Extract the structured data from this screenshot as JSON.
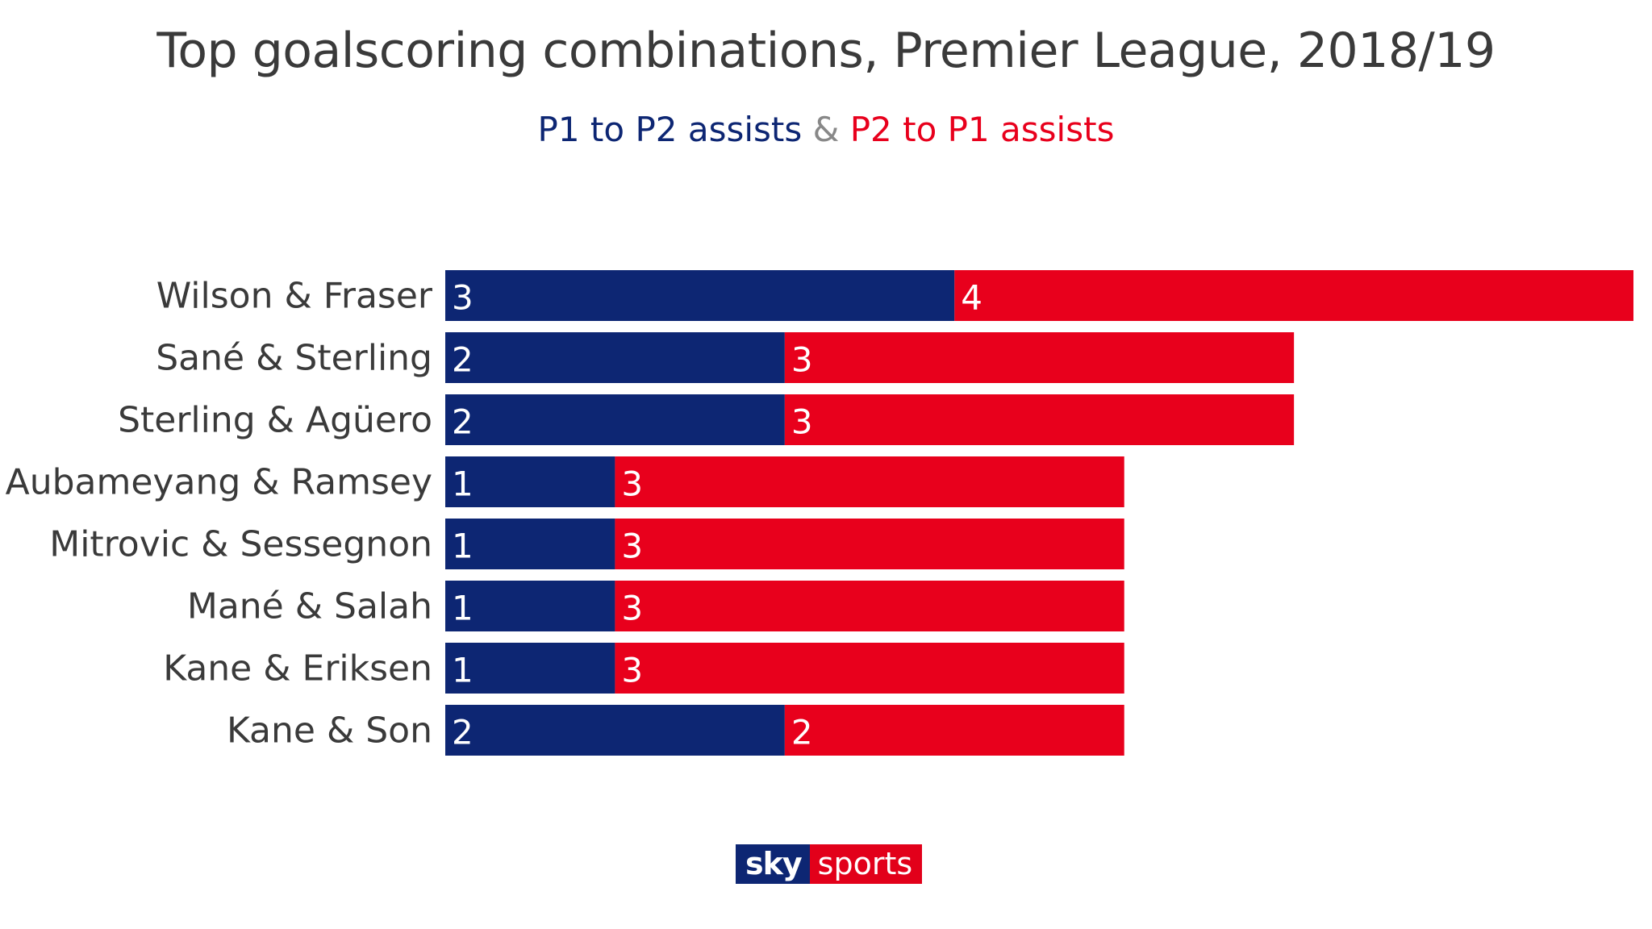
{
  "colors": {
    "p1_to_p2": "#0d2673",
    "p2_to_p1": "#e8001c",
    "text": "#3a3a3a",
    "separator": "#888888"
  },
  "subtitle": {
    "part1": "P1 to P2 assists",
    "separator": "&",
    "part2": "P2 to P1 assists"
  },
  "logo": {
    "sky": "sky",
    "sports": "sports"
  },
  "chart_data": {
    "type": "bar",
    "orientation": "horizontal",
    "stacked": true,
    "title": "Top goalscoring combinations, Premier League, 2018/19",
    "categories": [
      "Wilson & Fraser",
      "Sané & Sterling",
      "Sterling & Agüero",
      "Aubameyang & Ramsey",
      "Mitrovic & Sessegnon",
      "Mané & Salah",
      "Kane & Eriksen",
      "Kane & Son"
    ],
    "series": [
      {
        "name": "P1 to P2 assists",
        "values": [
          3,
          2,
          2,
          1,
          1,
          1,
          1,
          2
        ]
      },
      {
        "name": "P2 to P1 assists",
        "values": [
          4,
          3,
          3,
          3,
          3,
          3,
          3,
          2
        ]
      }
    ],
    "xlim": [
      0,
      7
    ],
    "grid": false,
    "data_labels": true
  }
}
